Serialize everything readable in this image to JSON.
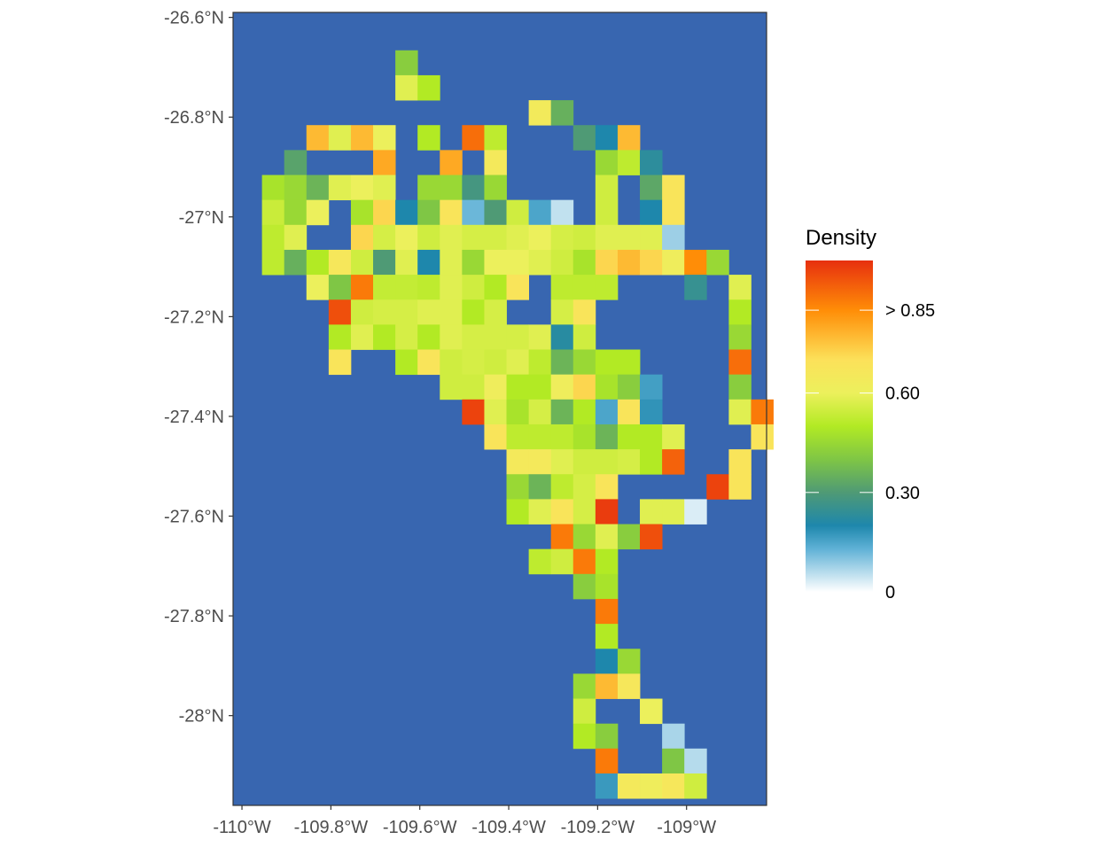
{
  "chart_data": {
    "type": "heatmap",
    "background_color": "#3866b0",
    "grid": false,
    "legend_placement": "right",
    "xlim": [
      -110.02,
      -108.82
    ],
    "ylim": [
      -28.18,
      -26.59
    ],
    "x_ticks": [
      {
        "value": -110.0,
        "label": "-110°W"
      },
      {
        "value": -109.8,
        "label": "-109.8°W"
      },
      {
        "value": -109.6,
        "label": "-109.6°W"
      },
      {
        "value": -109.4,
        "label": "-109.4°W"
      },
      {
        "value": -109.2,
        "label": "-109.2°W"
      },
      {
        "value": -109.0,
        "label": "-109°W"
      }
    ],
    "y_ticks": [
      {
        "value": -26.6,
        "label": "-26.6°N"
      },
      {
        "value": -26.8,
        "label": "-26.8°N"
      },
      {
        "value": -27.0,
        "label": "-27°N"
      },
      {
        "value": -27.2,
        "label": "-27.2°N"
      },
      {
        "value": -27.4,
        "label": "-27.4°N"
      },
      {
        "value": -27.6,
        "label": "-27.6°N"
      },
      {
        "value": -27.8,
        "label": "-27.8°N"
      },
      {
        "value": -28.0,
        "label": "-28°N"
      }
    ],
    "grid_origin": {
      "x_left": -109.955,
      "y_top": -26.666
    },
    "cell_size": {
      "dx": 0.05,
      "dy": 0.05
    },
    "legend": {
      "title": "Density",
      "labels": [
        {
          "value": 0.85,
          "label": "> 0.85"
        },
        {
          "value": 0.6,
          "label": "0.60"
        },
        {
          "value": 0.3,
          "label": "0.30"
        },
        {
          "value": 0.0,
          "label": "0"
        }
      ],
      "range": [
        0,
        1.0
      ],
      "gradient_stops": [
        {
          "v": 0.0,
          "color": "#ffffff"
        },
        {
          "v": 0.13,
          "color": "#5fb1d6"
        },
        {
          "v": 0.2,
          "color": "#1e87ac"
        },
        {
          "v": 0.3,
          "color": "#4f9a75"
        },
        {
          "v": 0.4,
          "color": "#7fc645"
        },
        {
          "v": 0.5,
          "color": "#b2ea24"
        },
        {
          "v": 0.6,
          "color": "#ecf05c"
        },
        {
          "v": 0.7,
          "color": "#fce15a"
        },
        {
          "v": 0.85,
          "color": "#ff8d07"
        },
        {
          "v": 1.0,
          "color": "#e7300f"
        }
      ]
    },
    "cells": [
      [
        0,
        6,
        0.42
      ],
      [
        1,
        6,
        0.58
      ],
      [
        1,
        7,
        0.5
      ],
      [
        2,
        12,
        0.64
      ],
      [
        2,
        13,
        0.35
      ],
      [
        3,
        2,
        0.77
      ],
      [
        3,
        3,
        0.58
      ],
      [
        3,
        4,
        0.77
      ],
      [
        3,
        5,
        0.6
      ],
      [
        3,
        7,
        0.5
      ],
      [
        3,
        9,
        0.9
      ],
      [
        3,
        10,
        0.52
      ],
      [
        3,
        14,
        0.3
      ],
      [
        3,
        15,
        0.2
      ],
      [
        3,
        16,
        0.77
      ],
      [
        4,
        1,
        0.32
      ],
      [
        4,
        5,
        0.8
      ],
      [
        4,
        8,
        0.8
      ],
      [
        4,
        10,
        0.65
      ],
      [
        4,
        15,
        0.45
      ],
      [
        4,
        16,
        0.52
      ],
      [
        4,
        17,
        0.23
      ],
      [
        5,
        0,
        0.48
      ],
      [
        5,
        1,
        0.45
      ],
      [
        5,
        2,
        0.36
      ],
      [
        5,
        3,
        0.58
      ],
      [
        5,
        4,
        0.6
      ],
      [
        5,
        5,
        0.58
      ],
      [
        5,
        7,
        0.45
      ],
      [
        5,
        8,
        0.45
      ],
      [
        5,
        9,
        0.28
      ],
      [
        5,
        10,
        0.45
      ],
      [
        5,
        15,
        0.55
      ],
      [
        5,
        17,
        0.33
      ],
      [
        5,
        18,
        0.68
      ],
      [
        6,
        0,
        0.54
      ],
      [
        6,
        1,
        0.45
      ],
      [
        6,
        2,
        0.6
      ],
      [
        6,
        4,
        0.48
      ],
      [
        6,
        5,
        0.72
      ],
      [
        6,
        6,
        0.2
      ],
      [
        6,
        7,
        0.4
      ],
      [
        6,
        8,
        0.68
      ],
      [
        6,
        9,
        0.12
      ],
      [
        6,
        10,
        0.3
      ],
      [
        6,
        11,
        0.55
      ],
      [
        6,
        12,
        0.15
      ],
      [
        6,
        13,
        0.05
      ],
      [
        6,
        15,
        0.55
      ],
      [
        6,
        17,
        0.2
      ],
      [
        6,
        18,
        0.68
      ],
      [
        7,
        0,
        0.52
      ],
      [
        7,
        1,
        0.58
      ],
      [
        7,
        4,
        0.72
      ],
      [
        7,
        5,
        0.56
      ],
      [
        7,
        6,
        0.6
      ],
      [
        7,
        7,
        0.55
      ],
      [
        7,
        8,
        0.58
      ],
      [
        7,
        9,
        0.56
      ],
      [
        7,
        10,
        0.56
      ],
      [
        7,
        11,
        0.58
      ],
      [
        7,
        12,
        0.6
      ],
      [
        7,
        13,
        0.56
      ],
      [
        7,
        14,
        0.55
      ],
      [
        7,
        15,
        0.58
      ],
      [
        7,
        16,
        0.58
      ],
      [
        7,
        17,
        0.58
      ],
      [
        7,
        18,
        0.08
      ],
      [
        8,
        0,
        0.52
      ],
      [
        8,
        1,
        0.35
      ],
      [
        8,
        2,
        0.5
      ],
      [
        8,
        3,
        0.66
      ],
      [
        8,
        4,
        0.55
      ],
      [
        8,
        5,
        0.3
      ],
      [
        8,
        6,
        0.58
      ],
      [
        8,
        7,
        0.2
      ],
      [
        8,
        8,
        0.58
      ],
      [
        8,
        9,
        0.45
      ],
      [
        8,
        10,
        0.6
      ],
      [
        8,
        11,
        0.6
      ],
      [
        8,
        12,
        0.58
      ],
      [
        8,
        13,
        0.55
      ],
      [
        8,
        14,
        0.48
      ],
      [
        8,
        15,
        0.72
      ],
      [
        8,
        16,
        0.77
      ],
      [
        8,
        17,
        0.72
      ],
      [
        8,
        18,
        0.62
      ],
      [
        8,
        19,
        0.85
      ],
      [
        8,
        20,
        0.45
      ],
      [
        9,
        2,
        0.6
      ],
      [
        9,
        3,
        0.4
      ],
      [
        9,
        4,
        0.88
      ],
      [
        9,
        5,
        0.53
      ],
      [
        9,
        6,
        0.53
      ],
      [
        9,
        7,
        0.52
      ],
      [
        9,
        8,
        0.58
      ],
      [
        9,
        9,
        0.55
      ],
      [
        9,
        10,
        0.5
      ],
      [
        9,
        11,
        0.68
      ],
      [
        9,
        13,
        0.52
      ],
      [
        9,
        14,
        0.52
      ],
      [
        9,
        15,
        0.52
      ],
      [
        9,
        19,
        0.25
      ],
      [
        9,
        21,
        0.58
      ],
      [
        10,
        3,
        0.95
      ],
      [
        10,
        4,
        0.55
      ],
      [
        10,
        5,
        0.56
      ],
      [
        10,
        6,
        0.56
      ],
      [
        10,
        7,
        0.58
      ],
      [
        10,
        8,
        0.58
      ],
      [
        10,
        9,
        0.5
      ],
      [
        10,
        10,
        0.56
      ],
      [
        10,
        13,
        0.56
      ],
      [
        10,
        14,
        0.68
      ],
      [
        10,
        21,
        0.5
      ],
      [
        11,
        3,
        0.5
      ],
      [
        11,
        4,
        0.58
      ],
      [
        11,
        5,
        0.5
      ],
      [
        11,
        6,
        0.56
      ],
      [
        11,
        7,
        0.5
      ],
      [
        11,
        8,
        0.58
      ],
      [
        11,
        9,
        0.56
      ],
      [
        11,
        10,
        0.56
      ],
      [
        11,
        11,
        0.56
      ],
      [
        11,
        12,
        0.58
      ],
      [
        11,
        13,
        0.22
      ],
      [
        11,
        14,
        0.55
      ],
      [
        11,
        21,
        0.45
      ],
      [
        12,
        3,
        0.68
      ],
      [
        12,
        6,
        0.5
      ],
      [
        12,
        7,
        0.68
      ],
      [
        12,
        8,
        0.55
      ],
      [
        12,
        9,
        0.56
      ],
      [
        12,
        10,
        0.55
      ],
      [
        12,
        11,
        0.58
      ],
      [
        12,
        12,
        0.52
      ],
      [
        12,
        13,
        0.36
      ],
      [
        12,
        14,
        0.45
      ],
      [
        12,
        15,
        0.5
      ],
      [
        12,
        16,
        0.5
      ],
      [
        12,
        21,
        0.9
      ],
      [
        13,
        8,
        0.55
      ],
      [
        13,
        9,
        0.55
      ],
      [
        13,
        10,
        0.62
      ],
      [
        13,
        11,
        0.5
      ],
      [
        13,
        12,
        0.5
      ],
      [
        13,
        13,
        0.62
      ],
      [
        13,
        14,
        0.72
      ],
      [
        13,
        15,
        0.48
      ],
      [
        13,
        16,
        0.42
      ],
      [
        13,
        17,
        0.16
      ],
      [
        13,
        21,
        0.42
      ],
      [
        14,
        9,
        0.97
      ],
      [
        14,
        10,
        0.58
      ],
      [
        14,
        11,
        0.48
      ],
      [
        14,
        12,
        0.56
      ],
      [
        14,
        13,
        0.36
      ],
      [
        14,
        14,
        0.5
      ],
      [
        14,
        15,
        0.15
      ],
      [
        14,
        16,
        0.68
      ],
      [
        14,
        17,
        0.18
      ],
      [
        14,
        21,
        0.58
      ],
      [
        14,
        22,
        0.88
      ],
      [
        15,
        10,
        0.68
      ],
      [
        15,
        11,
        0.52
      ],
      [
        15,
        12,
        0.52
      ],
      [
        15,
        13,
        0.52
      ],
      [
        15,
        14,
        0.48
      ],
      [
        15,
        15,
        0.36
      ],
      [
        15,
        16,
        0.5
      ],
      [
        15,
        17,
        0.5
      ],
      [
        15,
        18,
        0.58
      ],
      [
        15,
        22,
        0.68
      ],
      [
        16,
        11,
        0.65
      ],
      [
        16,
        12,
        0.65
      ],
      [
        16,
        13,
        0.58
      ],
      [
        16,
        14,
        0.55
      ],
      [
        16,
        15,
        0.55
      ],
      [
        16,
        16,
        0.56
      ],
      [
        16,
        17,
        0.5
      ],
      [
        16,
        18,
        0.92
      ],
      [
        16,
        21,
        0.68
      ],
      [
        17,
        11,
        0.45
      ],
      [
        17,
        12,
        0.36
      ],
      [
        17,
        13,
        0.52
      ],
      [
        17,
        14,
        0.56
      ],
      [
        17,
        15,
        0.68
      ],
      [
        17,
        20,
        0.97
      ],
      [
        17,
        21,
        0.68
      ],
      [
        18,
        11,
        0.5
      ],
      [
        18,
        12,
        0.58
      ],
      [
        18,
        13,
        0.68
      ],
      [
        18,
        14,
        0.56
      ],
      [
        18,
        15,
        0.98
      ],
      [
        18,
        17,
        0.58
      ],
      [
        18,
        18,
        0.58
      ],
      [
        18,
        19,
        0.03
      ],
      [
        19,
        13,
        0.88
      ],
      [
        19,
        14,
        0.45
      ],
      [
        19,
        15,
        0.58
      ],
      [
        19,
        16,
        0.42
      ],
      [
        19,
        17,
        0.95
      ],
      [
        20,
        12,
        0.52
      ],
      [
        20,
        13,
        0.55
      ],
      [
        20,
        14,
        0.88
      ],
      [
        20,
        15,
        0.5
      ],
      [
        21,
        14,
        0.42
      ],
      [
        21,
        15,
        0.48
      ],
      [
        22,
        15,
        0.88
      ],
      [
        23,
        15,
        0.5
      ],
      [
        24,
        15,
        0.2
      ],
      [
        24,
        16,
        0.45
      ],
      [
        25,
        14,
        0.45
      ],
      [
        25,
        15,
        0.77
      ],
      [
        25,
        16,
        0.66
      ],
      [
        26,
        14,
        0.55
      ],
      [
        26,
        17,
        0.6
      ],
      [
        27,
        14,
        0.5
      ],
      [
        27,
        15,
        0.42
      ],
      [
        27,
        18,
        0.07
      ],
      [
        28,
        15,
        0.88
      ],
      [
        28,
        18,
        0.4
      ],
      [
        28,
        19,
        0.06
      ],
      [
        29,
        15,
        0.17
      ],
      [
        29,
        16,
        0.65
      ],
      [
        29,
        17,
        0.62
      ],
      [
        29,
        18,
        0.66
      ],
      [
        29,
        19,
        0.55
      ]
    ]
  }
}
